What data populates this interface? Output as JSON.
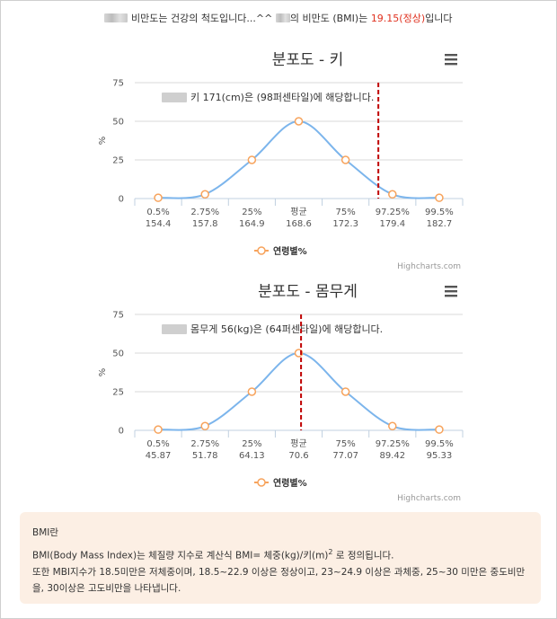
{
  "header": {
    "line_part1": "비만도는 건강의 척도입니다...^^",
    "line_part2": "의 비만도 (BMI)는 ",
    "bmi_value": "19.15(정상)",
    "line_part3": "입니다"
  },
  "chart_data": [
    {
      "type": "line",
      "title": "분포도 - 키",
      "ylabel": "%",
      "ylim": [
        0,
        75
      ],
      "yticks": [
        0,
        25,
        50,
        75
      ],
      "categories": [
        "0.5%",
        "2.75%",
        "25%",
        "평균",
        "75%",
        "97.25%",
        "99.5%"
      ],
      "category_values": [
        "154.4",
        "157.8",
        "164.9",
        "168.6",
        "172.3",
        "179.4",
        "182.7"
      ],
      "series": [
        {
          "name": "연령별%",
          "values": [
            0.5,
            2.75,
            25,
            50,
            25,
            2.75,
            0.5
          ]
        }
      ],
      "marker_line_position": 5.2,
      "annotation": "키 171(cm)은 (98퍼센타일)에 해당합니다.",
      "credit": "Highcharts.com",
      "grid": true,
      "legend": "bottom"
    },
    {
      "type": "line",
      "title": "분포도 - 몸무게",
      "ylabel": "%",
      "ylim": [
        0,
        75
      ],
      "yticks": [
        0,
        25,
        50,
        75
      ],
      "categories": [
        "0.5%",
        "2.75%",
        "25%",
        "평균",
        "75%",
        "97.25%",
        "99.5%"
      ],
      "category_values": [
        "45.87",
        "51.78",
        "64.13",
        "70.6",
        "77.07",
        "89.42",
        "95.33"
      ],
      "series": [
        {
          "name": "연령별%",
          "values": [
            0.5,
            2.75,
            25,
            50,
            25,
            2.75,
            0.5
          ]
        }
      ],
      "marker_line_position": 3.55,
      "annotation": "몸무게 56(kg)은 (64퍼센타일)에 해당합니다.",
      "credit": "Highcharts.com",
      "grid": true,
      "legend": "bottom"
    }
  ],
  "colors": {
    "line": "#7cb5ec",
    "marker_fill": "#ffffff",
    "marker_stroke": "#f7a35c",
    "marker_line": "#c00000",
    "highlight": "#e0311f",
    "info_bg": "#fcefe4"
  },
  "icons": {
    "menu": "hamburger-menu-icon"
  },
  "bmi_info": {
    "heading": "BMI란",
    "line1_a": "BMI(Body Mass Index)는 체질량 지수로 계산식 BMI= 체중(kg)/키(m)",
    "line1_sup": "2",
    "line1_b": " 로 정의됩니다.",
    "line2": "또한 MBI지수가 18.5미만은 저체중이며, 18.5~22.9 이상은 정상이고, 23~24.9 이상은 과체중, 25~30 미만은 중도비만",
    "line3": "을, 30이상은 고도비만을 나타냅니다."
  }
}
